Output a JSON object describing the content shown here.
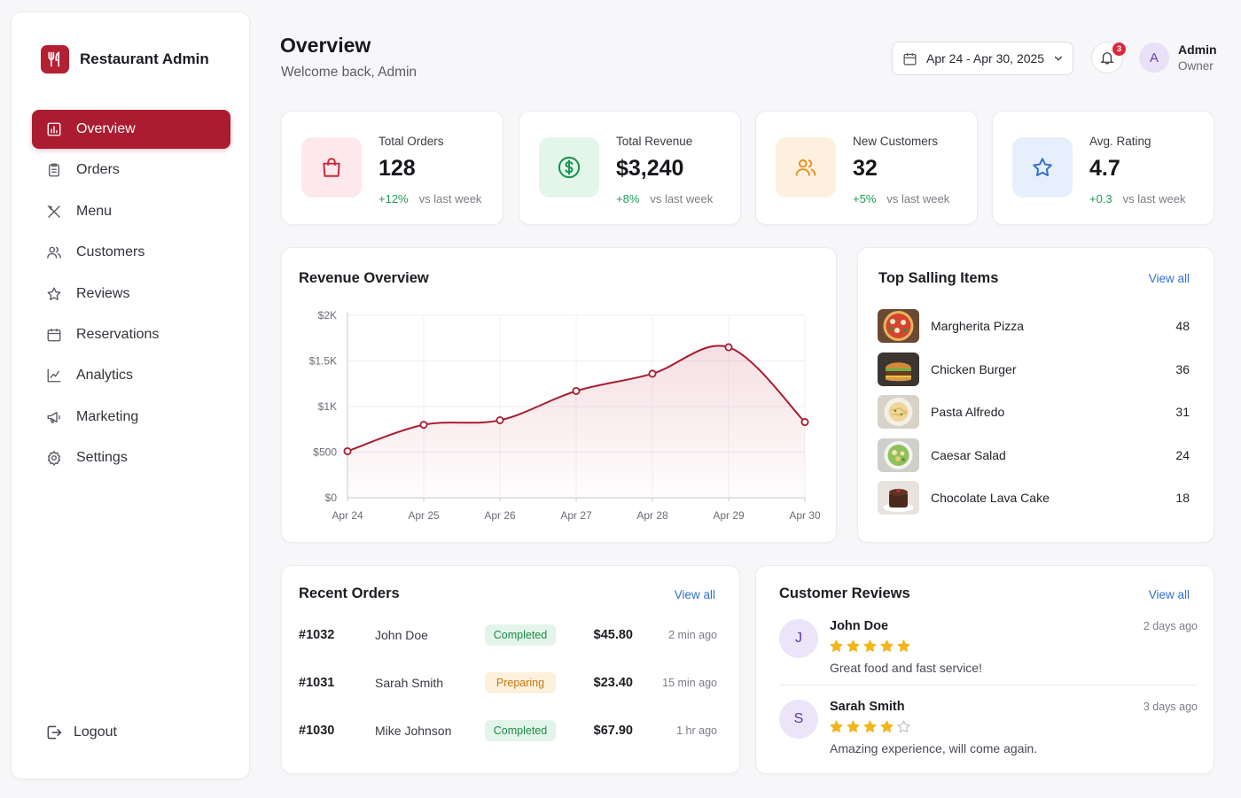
{
  "brand": {
    "name": "Restaurant Admin"
  },
  "sidebar": {
    "items": [
      {
        "label": "Overview",
        "icon": "chart-bar-icon",
        "active": true
      },
      {
        "label": "Orders",
        "icon": "clipboard-icon"
      },
      {
        "label": "Menu",
        "icon": "utensils-icon"
      },
      {
        "label": "Customers",
        "icon": "users-icon"
      },
      {
        "label": "Reviews",
        "icon": "star-icon"
      },
      {
        "label": "Reservations",
        "icon": "calendar-icon"
      },
      {
        "label": "Analytics",
        "icon": "line-chart-icon"
      },
      {
        "label": "Marketing",
        "icon": "megaphone-icon"
      },
      {
        "label": "Settings",
        "icon": "gear-icon"
      }
    ],
    "logout_label": "Logout"
  },
  "header": {
    "title": "Overview",
    "subtitle": "Welcome back, Admin",
    "date_range": "Apr 24 - Apr 30, 2025",
    "notifications_count": "3",
    "user": {
      "initial": "A",
      "name": "Admin",
      "role": "Owner"
    }
  },
  "stats": [
    {
      "label": "Total Orders",
      "value": "128",
      "delta": "+12%",
      "compare": "vs last week",
      "icon": "shopping-bag-icon",
      "color": "#c8283a",
      "bg": "#fde9eb"
    },
    {
      "label": "Total Revenue",
      "value": "$3,240",
      "delta": "+8%",
      "compare": "vs last week",
      "icon": "dollar-circle-icon",
      "color": "#1d9650",
      "bg": "#e4f6ea"
    },
    {
      "label": "New Customers",
      "value": "32",
      "delta": "+5%",
      "compare": "vs last week",
      "icon": "users-icon",
      "color": "#e8901e",
      "bg": "#fdf0df"
    },
    {
      "label": "Avg. Rating",
      "value": "4.7",
      "delta": "+0.3",
      "compare": "vs last week",
      "icon": "star-icon",
      "color": "#2f6fce",
      "bg": "#e7effc"
    }
  ],
  "revenue": {
    "title": "Revenue Overview"
  },
  "chart_data": {
    "type": "area",
    "title": "Revenue Overview",
    "categories": [
      "Apr 24",
      "Apr 25",
      "Apr 26",
      "Apr 27",
      "Apr 28",
      "Apr 29",
      "Apr 30"
    ],
    "series": [
      {
        "values": [
          510,
          800,
          850,
          1170,
          1360,
          1650,
          830
        ]
      }
    ],
    "ylim": [
      0,
      2000
    ],
    "yticks": [
      "$0",
      "$500",
      "$1K",
      "$1.5K",
      "$2K"
    ],
    "ytick_values": [
      0,
      500,
      1000,
      1500,
      2000
    ],
    "grid": true,
    "line_color": "#a81c30"
  },
  "top_items": {
    "title": "Top Salling Items",
    "view_all": "View all",
    "items": [
      {
        "name": "Margherita Pizza",
        "count": "48",
        "thumb": "pizza"
      },
      {
        "name": "Chicken Burger",
        "count": "36",
        "thumb": "burger"
      },
      {
        "name": "Pasta Alfredo",
        "count": "31",
        "thumb": "pasta"
      },
      {
        "name": "Caesar Salad",
        "count": "24",
        "thumb": "salad"
      },
      {
        "name": "Chocolate Lava Cake",
        "count": "18",
        "thumb": "cake"
      }
    ]
  },
  "orders": {
    "title": "Recent Orders",
    "view_all": "View all",
    "rows": [
      {
        "id": "#1032",
        "customer": "John Doe",
        "status": "Completed",
        "status_key": "completed",
        "amount": "$45.80",
        "time": "2 min ago"
      },
      {
        "id": "#1031",
        "customer": "Sarah Smith",
        "status": "Preparing",
        "status_key": "preparing",
        "amount": "$23.40",
        "time": "15 min ago"
      },
      {
        "id": "#1030",
        "customer": "Mike Johnson",
        "status": "Completed",
        "status_key": "completed",
        "amount": "$67.90",
        "time": "1 hr ago"
      }
    ]
  },
  "reviews": {
    "title": "Customer Reviews",
    "view_all": "View all",
    "items": [
      {
        "initial": "J",
        "name": "John Doe",
        "rating": 5,
        "time": "2 days ago",
        "text": "Great food and fast service!"
      },
      {
        "initial": "S",
        "name": "Sarah Smith",
        "rating": 4,
        "time": "3 days ago",
        "text": "Amazing experience, will come again."
      }
    ]
  }
}
